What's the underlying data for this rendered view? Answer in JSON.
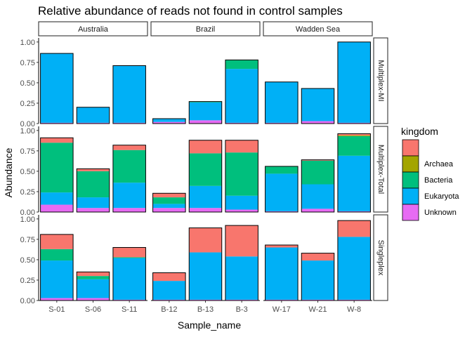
{
  "chart_data": {
    "type": "bar",
    "stacked": true,
    "title": "Relative abundance of reads not found in control samples",
    "xlabel": "Sample_name",
    "ylabel": "Abundance",
    "ylim": [
      0,
      1.05
    ],
    "y_ticks": [
      "0.00",
      "0.25",
      "0.50",
      "0.75",
      "1.00"
    ],
    "y_tick_values": [
      0,
      0.25,
      0.5,
      0.75,
      1.0
    ],
    "grid": false,
    "legend_position": "right",
    "legend": {
      "title": "kingdom",
      "entries": [
        {
          "label": "",
          "color": "#F8766D"
        },
        {
          "label": "Archaea",
          "color": "#A3A500"
        },
        {
          "label": "Bacteria",
          "color": "#00BF7D"
        },
        {
          "label": "Eukaryota",
          "color": "#00B0F6"
        },
        {
          "label": "Unknown",
          "color": "#E76BF3"
        }
      ]
    },
    "stack_order": [
      "Unknown",
      "Eukaryota",
      "Bacteria",
      "Archaea",
      ""
    ],
    "col_facets": [
      {
        "name": "Australia",
        "samples": [
          "S-01",
          "S-06",
          "S-11"
        ]
      },
      {
        "name": "Brazil",
        "samples": [
          "B-12",
          "B-13",
          "B-3"
        ]
      },
      {
        "name": "Wadden Sea",
        "samples": [
          "W-17",
          "W-21",
          "W-8"
        ]
      }
    ],
    "row_facets": [
      {
        "name": "Multiplex-MI",
        "data": {
          "S-01": {
            "Unknown": 0.01,
            "Eukaryota": 0.85,
            "Bacteria": 0,
            "Archaea": 0,
            "": 0
          },
          "S-06": {
            "Unknown": 0.01,
            "Eukaryota": 0.19,
            "Bacteria": 0,
            "Archaea": 0,
            "": 0
          },
          "S-11": {
            "Unknown": 0.01,
            "Eukaryota": 0.7,
            "Bacteria": 0,
            "Archaea": 0,
            "": 0
          },
          "B-12": {
            "Unknown": 0.02,
            "Eukaryota": 0.04,
            "Bacteria": 0,
            "Archaea": 0,
            "": 0
          },
          "B-13": {
            "Unknown": 0.04,
            "Eukaryota": 0.22,
            "Bacteria": 0.01,
            "Archaea": 0,
            "": 0
          },
          "B-3": {
            "Unknown": 0.01,
            "Eukaryota": 0.66,
            "Bacteria": 0.11,
            "Archaea": 0,
            "": 0
          },
          "W-17": {
            "Unknown": 0.01,
            "Eukaryota": 0.5,
            "Bacteria": 0,
            "Archaea": 0,
            "": 0
          },
          "W-21": {
            "Unknown": 0.03,
            "Eukaryota": 0.4,
            "Bacteria": 0,
            "Archaea": 0,
            "": 0
          },
          "W-8": {
            "Unknown": 0.01,
            "Eukaryota": 0.99,
            "Bacteria": 0,
            "Archaea": 0,
            "": 0
          }
        }
      },
      {
        "name": "Multiplex-Total",
        "data": {
          "S-01": {
            "Unknown": 0.09,
            "Eukaryota": 0.15,
            "Bacteria": 0.61,
            "Archaea": 0,
            "": 0.06
          },
          "S-06": {
            "Unknown": 0.05,
            "Eukaryota": 0.13,
            "Bacteria": 0.32,
            "Archaea": 0,
            "": 0.03
          },
          "S-11": {
            "Unknown": 0.05,
            "Eukaryota": 0.31,
            "Bacteria": 0.4,
            "Archaea": 0,
            "": 0.06
          },
          "B-12": {
            "Unknown": 0.05,
            "Eukaryota": 0.05,
            "Bacteria": 0.08,
            "Archaea": 0,
            "": 0.05
          },
          "B-13": {
            "Unknown": 0.05,
            "Eukaryota": 0.27,
            "Bacteria": 0.4,
            "Archaea": 0,
            "": 0.16
          },
          "B-3": {
            "Unknown": 0.03,
            "Eukaryota": 0.17,
            "Bacteria": 0.53,
            "Archaea": 0,
            "": 0.15
          },
          "W-17": {
            "Unknown": 0.01,
            "Eukaryota": 0.46,
            "Bacteria": 0.09,
            "Archaea": 0,
            "": 0
          },
          "W-21": {
            "Unknown": 0.04,
            "Eukaryota": 0.3,
            "Bacteria": 0.29,
            "Archaea": 0,
            "": 0.01
          },
          "W-8": {
            "Unknown": 0.01,
            "Eukaryota": 0.68,
            "Bacteria": 0.24,
            "Archaea": 0.01,
            "": 0.02
          }
        }
      },
      {
        "name": "Singleplex",
        "data": {
          "S-01": {
            "Unknown": 0.03,
            "Eukaryota": 0.46,
            "Bacteria": 0.14,
            "Archaea": 0,
            "": 0.18
          },
          "S-06": {
            "Unknown": 0.03,
            "Eukaryota": 0.23,
            "Bacteria": 0.04,
            "Archaea": 0,
            "": 0.05
          },
          "S-11": {
            "Unknown": 0.01,
            "Eukaryota": 0.51,
            "Bacteria": 0.01,
            "Archaea": 0,
            "": 0.12
          },
          "B-12": {
            "Unknown": 0.01,
            "Eukaryota": 0.23,
            "Bacteria": 0,
            "Archaea": 0,
            "": 0.1
          },
          "B-13": {
            "Unknown": 0.01,
            "Eukaryota": 0.58,
            "Bacteria": 0,
            "Archaea": 0,
            "": 0.3
          },
          "B-3": {
            "Unknown": 0.01,
            "Eukaryota": 0.53,
            "Bacteria": 0,
            "Archaea": 0,
            "": 0.38
          },
          "W-17": {
            "Unknown": 0.01,
            "Eukaryota": 0.64,
            "Bacteria": 0,
            "Archaea": 0,
            "": 0.03
          },
          "W-21": {
            "Unknown": 0.01,
            "Eukaryota": 0.48,
            "Bacteria": 0,
            "Archaea": 0,
            "": 0.09
          },
          "W-8": {
            "Unknown": 0.01,
            "Eukaryota": 0.77,
            "Bacteria": 0,
            "Archaea": 0,
            "": 0.2
          }
        }
      }
    ]
  }
}
